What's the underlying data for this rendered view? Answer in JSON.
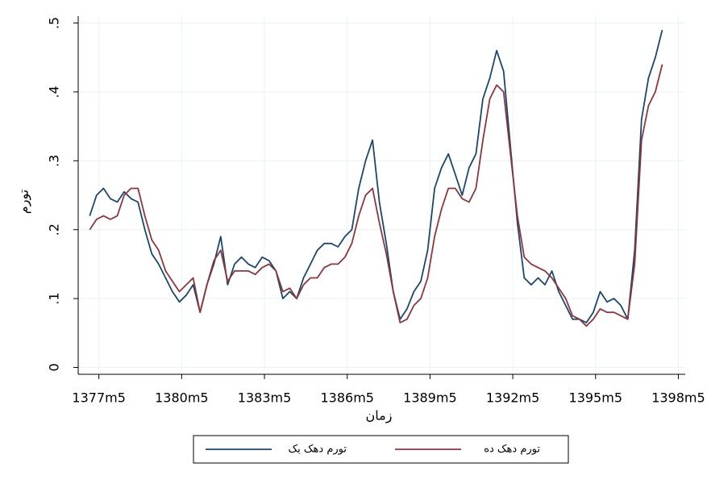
{
  "chart_data": {
    "type": "line",
    "y_label": "تورم",
    "x_label": "زمان",
    "x": [
      "1377m1",
      "1377m4",
      "1377m7",
      "1377m10",
      "1378m1",
      "1378m4",
      "1378m7",
      "1378m10",
      "1379m1",
      "1379m4",
      "1379m7",
      "1379m10",
      "1380m1",
      "1380m4",
      "1380m7",
      "1380m10",
      "1381m1",
      "1381m4",
      "1381m7",
      "1381m10",
      "1382m1",
      "1382m4",
      "1382m7",
      "1382m10",
      "1383m1",
      "1383m4",
      "1383m7",
      "1383m10",
      "1384m1",
      "1384m4",
      "1384m7",
      "1384m10",
      "1385m1",
      "1385m4",
      "1385m7",
      "1385m10",
      "1386m1",
      "1386m4",
      "1386m7",
      "1386m10",
      "1387m1",
      "1387m4",
      "1387m7",
      "1387m10",
      "1388m1",
      "1388m4",
      "1388m7",
      "1388m10",
      "1389m1",
      "1389m4",
      "1389m7",
      "1389m10",
      "1390m1",
      "1390m4",
      "1390m7",
      "1390m10",
      "1391m1",
      "1391m4",
      "1391m7",
      "1391m10",
      "1392m1",
      "1392m4",
      "1392m7",
      "1392m10",
      "1393m1",
      "1393m4",
      "1393m7",
      "1393m10",
      "1394m1",
      "1394m4",
      "1394m7",
      "1394m10",
      "1395m1",
      "1395m4",
      "1395m7",
      "1395m10",
      "1396m1",
      "1396m4",
      "1396m7",
      "1396m10",
      "1397m1",
      "1397m4",
      "1397m7",
      "1397m10"
    ],
    "series": [
      {
        "name": "تورم دهک یک",
        "color": "#1a476f",
        "values": [
          0.22,
          0.25,
          0.26,
          0.245,
          0.24,
          0.255,
          0.245,
          0.24,
          0.2,
          0.165,
          0.15,
          0.13,
          0.11,
          0.095,
          0.105,
          0.12,
          0.08,
          0.12,
          0.15,
          0.19,
          0.12,
          0.15,
          0.16,
          0.15,
          0.145,
          0.16,
          0.155,
          0.14,
          0.1,
          0.11,
          0.1,
          0.13,
          0.15,
          0.17,
          0.18,
          0.18,
          0.175,
          0.19,
          0.2,
          0.26,
          0.3,
          0.33,
          0.24,
          0.18,
          0.11,
          0.07,
          0.085,
          0.11,
          0.125,
          0.17,
          0.26,
          0.29,
          0.31,
          0.28,
          0.25,
          0.29,
          0.31,
          0.39,
          0.42,
          0.46,
          0.43,
          0.32,
          0.21,
          0.13,
          0.12,
          0.13,
          0.12,
          0.14,
          0.11,
          0.09,
          0.07,
          0.07,
          0.065,
          0.08,
          0.11,
          0.095,
          0.1,
          0.09,
          0.07,
          0.17,
          0.36,
          0.42,
          0.45,
          0.49
        ]
      },
      {
        "name": "تورم دهک ده",
        "color": "#90353b",
        "values": [
          0.2,
          0.215,
          0.22,
          0.215,
          0.22,
          0.25,
          0.26,
          0.26,
          0.22,
          0.185,
          0.17,
          0.14,
          0.125,
          0.11,
          0.12,
          0.13,
          0.08,
          0.12,
          0.155,
          0.17,
          0.125,
          0.14,
          0.14,
          0.14,
          0.135,
          0.145,
          0.15,
          0.14,
          0.11,
          0.115,
          0.1,
          0.12,
          0.13,
          0.13,
          0.145,
          0.15,
          0.15,
          0.16,
          0.18,
          0.22,
          0.25,
          0.26,
          0.21,
          0.165,
          0.11,
          0.065,
          0.07,
          0.09,
          0.1,
          0.13,
          0.19,
          0.23,
          0.26,
          0.26,
          0.245,
          0.24,
          0.26,
          0.33,
          0.39,
          0.41,
          0.4,
          0.31,
          0.22,
          0.16,
          0.15,
          0.145,
          0.14,
          0.13,
          0.115,
          0.1,
          0.075,
          0.07,
          0.06,
          0.07,
          0.085,
          0.08,
          0.08,
          0.075,
          0.07,
          0.15,
          0.33,
          0.38,
          0.4,
          0.44
        ]
      }
    ],
    "xlim": [
      "1376m8",
      "1398m8"
    ],
    "xticks": [
      "1377m5",
      "1380m5",
      "1383m5",
      "1386m5",
      "1389m5",
      "1392m5",
      "1395m5",
      "1398m5"
    ],
    "ylim": [
      -0.01,
      0.51
    ],
    "yticks": [
      0,
      {
        "value": 0.1,
        "label": ".1"
      },
      {
        "value": 0.2,
        "label": ".2"
      },
      {
        "value": 0.3,
        "label": ".3"
      },
      {
        "value": 0.4,
        "label": ".4"
      },
      {
        "value": 0.5,
        "label": ".5"
      }
    ],
    "grid": true
  }
}
